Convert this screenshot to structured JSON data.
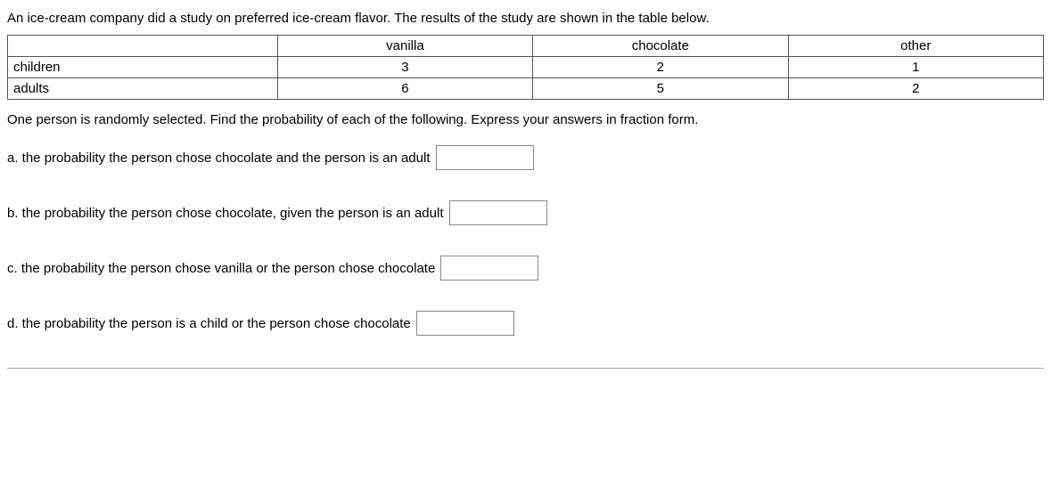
{
  "intro": "An ice-cream company did a study on preferred ice-cream flavor. The results of the study are shown in the table below.",
  "table": {
    "header": [
      "",
      "vanilla",
      "chocolate",
      "other"
    ],
    "rows": [
      {
        "label": "children",
        "cells": [
          "3",
          "2",
          "1"
        ]
      },
      {
        "label": "adults",
        "cells": [
          "6",
          "5",
          "2"
        ]
      }
    ]
  },
  "instruction": "One person is randomly selected. Find the probability of each of the following. Express your answers in fraction form.",
  "questions": {
    "a": {
      "label": "a. the probability the person chose chocolate and the person is an adult",
      "value": ""
    },
    "b": {
      "label": "b. the probability the person chose chocolate, given the person is an adult",
      "value": ""
    },
    "c": {
      "label": "c. the probability the person chose vanilla or the person chose chocolate",
      "value": ""
    },
    "d": {
      "label": "d. the probability the person is a child or the person chose chocolate",
      "value": ""
    }
  }
}
